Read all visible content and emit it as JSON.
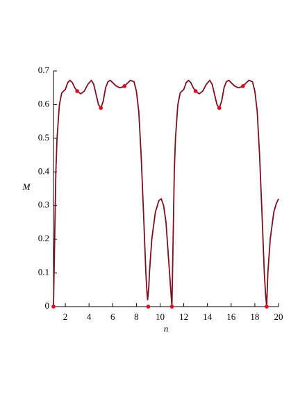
{
  "chart_data": {
    "type": "line",
    "xlabel": "n",
    "ylabel": "M",
    "xlim": [
      1,
      20
    ],
    "ylim": [
      0,
      0.7
    ],
    "xticks": [
      2,
      4,
      6,
      8,
      10,
      12,
      14,
      16,
      18,
      20
    ],
    "yticks": [
      0,
      0.1,
      0.2,
      0.3,
      0.4,
      0.5,
      0.6,
      0.7
    ],
    "series": [
      {
        "color": "#7b0f1f",
        "x": [
          1,
          1.1,
          1.2,
          1.3,
          1.5,
          1.7,
          2,
          2.2,
          2.4,
          2.6,
          2.8,
          3,
          3.3,
          3.6,
          3.9,
          4.2,
          4.4,
          4.6,
          4.8,
          5,
          5.2,
          5.4,
          5.6,
          5.8,
          6,
          6.3,
          6.6,
          6.9,
          7.2,
          7.5,
          7.8,
          8,
          8.2,
          8.4,
          8.6,
          8.8,
          8.9,
          8.95,
          9.05,
          9.1,
          9.3,
          9.6,
          9.9,
          10.1,
          10.3,
          10.5,
          10.7,
          10.9,
          11,
          11.1,
          11.2,
          11.3,
          11.5,
          11.7,
          12,
          12.2,
          12.4,
          12.6,
          12.8,
          13,
          13.3,
          13.6,
          13.9,
          14.2,
          14.4,
          14.6,
          14.8,
          15,
          15.2,
          15.4,
          15.6,
          15.8,
          16,
          16.3,
          16.6,
          16.9,
          17.2,
          17.5,
          17.8,
          18,
          18.2,
          18.4,
          18.6,
          18.8,
          18.9,
          19,
          19.1,
          19.3,
          19.6,
          19.8,
          20
        ],
        "values": [
          0,
          0.2,
          0.4,
          0.5,
          0.6,
          0.635,
          0.645,
          0.665,
          0.672,
          0.665,
          0.65,
          0.64,
          0.632,
          0.64,
          0.66,
          0.672,
          0.66,
          0.63,
          0.6,
          0.59,
          0.61,
          0.65,
          0.668,
          0.672,
          0.665,
          0.655,
          0.65,
          0.653,
          0.662,
          0.672,
          0.668,
          0.64,
          0.58,
          0.45,
          0.28,
          0.1,
          0.04,
          0.02,
          0.06,
          0.1,
          0.2,
          0.28,
          0.315,
          0.32,
          0.3,
          0.25,
          0.15,
          0.05,
          0,
          0.2,
          0.4,
          0.5,
          0.6,
          0.635,
          0.645,
          0.665,
          0.672,
          0.665,
          0.65,
          0.64,
          0.632,
          0.64,
          0.66,
          0.672,
          0.66,
          0.63,
          0.6,
          0.59,
          0.61,
          0.65,
          0.668,
          0.672,
          0.665,
          0.655,
          0.65,
          0.653,
          0.662,
          0.672,
          0.668,
          0.64,
          0.58,
          0.45,
          0.28,
          0.1,
          0.04,
          0,
          0.1,
          0.2,
          0.28,
          0.305,
          0.32
        ]
      },
      {
        "color": "#e8001c",
        "type": "scatter",
        "x": [
          1,
          3,
          5,
          7,
          9,
          11,
          13,
          15,
          17,
          19
        ],
        "values": [
          0,
          0.64,
          0.59,
          0.655,
          0,
          0,
          0.64,
          0.59,
          0.655,
          0
        ]
      }
    ]
  }
}
